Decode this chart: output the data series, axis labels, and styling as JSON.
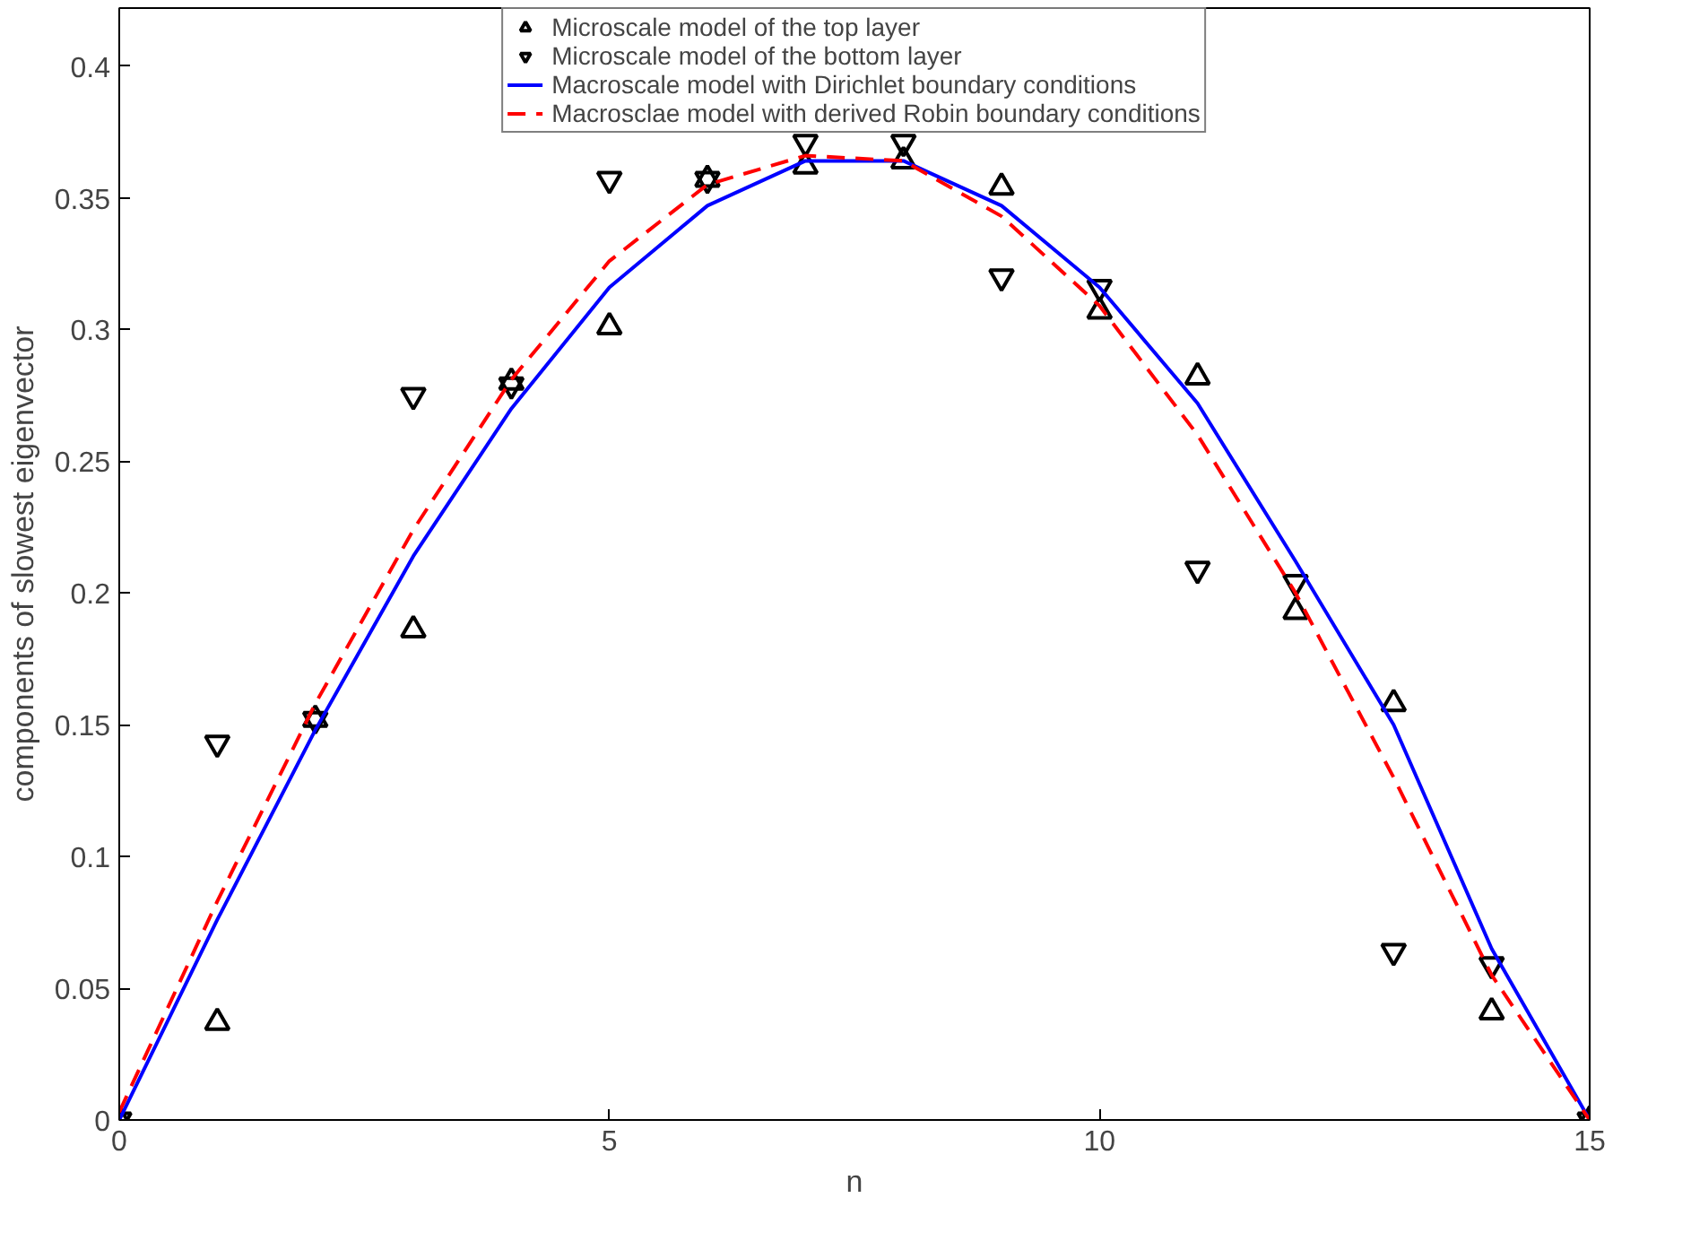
{
  "chart_data": {
    "type": "scatter",
    "xlabel": "n",
    "ylabel": "components of slowest eigenvector",
    "x": [
      0,
      1,
      2,
      3,
      4,
      5,
      6,
      7,
      8,
      9,
      10,
      11,
      12,
      13,
      14,
      15
    ],
    "series": [
      {
        "name": "Microscale model of the top layer",
        "color": "#000000",
        "marker": "triangle",
        "values": [
          0,
          0.037,
          0.152,
          0.186,
          0.28,
          0.301,
          0.357,
          0.362,
          0.364,
          0.354,
          0.307,
          0.282,
          0.193,
          0.158,
          0.041,
          0
        ]
      },
      {
        "name": "Microscale model of the bottom layer",
        "color": "#000000",
        "values": [
          0,
          0.143,
          0.152,
          0.275,
          0.279,
          0.357,
          0.357,
          0.371,
          0.371,
          0.32,
          0.316,
          0.209,
          0.204,
          0.064,
          0.059,
          0
        ]
      },
      {
        "name": "Macroscale model with Dirichlet boundary conditions",
        "type": "line",
        "color": "#0000ff",
        "line_style": "solid",
        "values": [
          0,
          0.076,
          0.148,
          0.214,
          0.27,
          0.316,
          0.347,
          0.364,
          0.364,
          0.347,
          0.316,
          0.272,
          0.212,
          0.15,
          0.065,
          0
        ]
      },
      {
        "name": "Macrosclae model with derived Robin boundary conditions",
        "type": "line",
        "color": "#ff0000",
        "line_style": "dashed",
        "values": [
          0.003,
          0.083,
          0.158,
          0.224,
          0.281,
          0.326,
          0.355,
          0.366,
          0.364,
          0.343,
          0.309,
          0.26,
          0.2,
          0.13,
          0.055,
          0
        ]
      }
    ],
    "xlim": [
      0,
      15
    ],
    "xticks": [
      0,
      5,
      10,
      15
    ],
    "ylim": [
      0,
      0.422
    ],
    "yticks": [
      0,
      0.05,
      0.1,
      0.15,
      0.2,
      0.25,
      0.3,
      0.35,
      0.4
    ],
    "grid": false,
    "legend": "top"
  }
}
